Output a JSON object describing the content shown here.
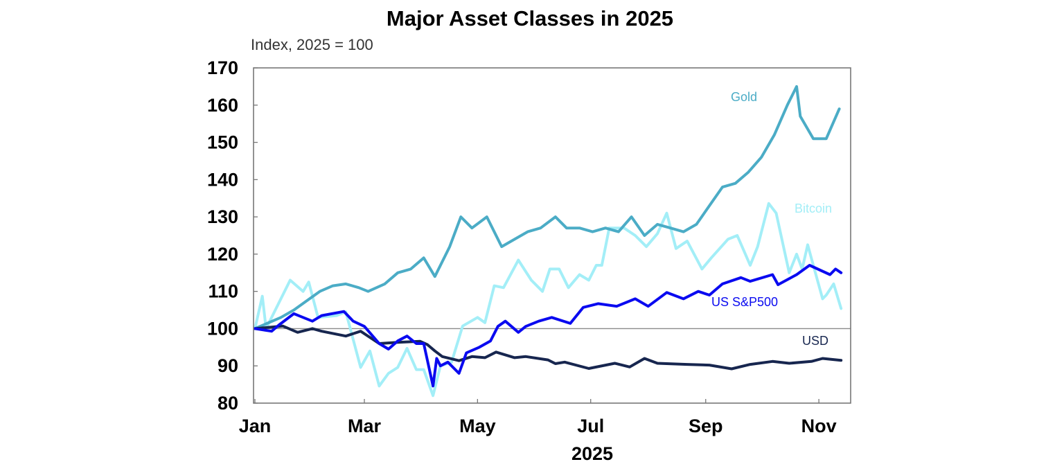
{
  "chart_data": {
    "type": "line",
    "title": "Major Asset Classes in 2025",
    "subtitle": "Index, 2025 = 100",
    "xlabel": "2025",
    "ylabel": "",
    "ylim": [
      80,
      170
    ],
    "yticks": [
      "170",
      "160",
      "150",
      "140",
      "130",
      "120",
      "110",
      "100",
      "90",
      "80"
    ],
    "xticks": [
      {
        "label": "Jan",
        "date": "2025-01-01"
      },
      {
        "label": "Mar",
        "date": "2025-03-01"
      },
      {
        "label": "May",
        "date": "2025-05-01"
      },
      {
        "label": "Jul",
        "date": "2025-07-01"
      },
      {
        "label": "Sep",
        "date": "2025-09-01"
      },
      {
        "label": "Nov",
        "date": "2025-11-01"
      }
    ],
    "reference_line": 100,
    "grid": false,
    "legend": "inline labels",
    "series": [
      {
        "name": "Gold",
        "color": "#4BACC6",
        "points": [
          [
            "2025-01-01",
            100
          ],
          [
            "2025-01-08",
            101.5
          ],
          [
            "2025-01-15",
            103
          ],
          [
            "2025-01-22",
            105
          ],
          [
            "2025-01-29",
            107.5
          ],
          [
            "2025-02-05",
            110
          ],
          [
            "2025-02-12",
            111.5
          ],
          [
            "2025-02-19",
            112
          ],
          [
            "2025-02-26",
            111
          ],
          [
            "2025-03-03",
            110
          ],
          [
            "2025-03-12",
            112
          ],
          [
            "2025-03-19",
            115
          ],
          [
            "2025-03-26",
            116
          ],
          [
            "2025-04-02",
            119
          ],
          [
            "2025-04-08",
            114
          ],
          [
            "2025-04-16",
            122
          ],
          [
            "2025-04-22",
            130
          ],
          [
            "2025-04-28",
            127
          ],
          [
            "2025-05-06",
            130
          ],
          [
            "2025-05-14",
            122
          ],
          [
            "2025-05-21",
            124
          ],
          [
            "2025-05-28",
            126
          ],
          [
            "2025-06-04",
            127
          ],
          [
            "2025-06-12",
            130
          ],
          [
            "2025-06-18",
            127
          ],
          [
            "2025-06-25",
            127
          ],
          [
            "2025-07-02",
            126
          ],
          [
            "2025-07-09",
            127
          ],
          [
            "2025-07-16",
            126
          ],
          [
            "2025-07-23",
            130
          ],
          [
            "2025-07-30",
            125
          ],
          [
            "2025-08-06",
            128
          ],
          [
            "2025-08-13",
            127
          ],
          [
            "2025-08-20",
            126
          ],
          [
            "2025-08-27",
            128
          ],
          [
            "2025-09-03",
            133
          ],
          [
            "2025-09-10",
            138
          ],
          [
            "2025-09-17",
            139
          ],
          [
            "2025-09-24",
            142
          ],
          [
            "2025-10-01",
            146
          ],
          [
            "2025-10-08",
            152
          ],
          [
            "2025-10-15",
            160
          ],
          [
            "2025-10-20",
            165
          ],
          [
            "2025-10-22",
            157
          ],
          [
            "2025-10-29",
            151
          ],
          [
            "2025-11-05",
            151
          ],
          [
            "2025-11-12",
            159
          ]
        ]
      },
      {
        "name": "Bitcoin",
        "color": "#A3EEF7",
        "points": [
          [
            "2025-01-01",
            100
          ],
          [
            "2025-01-05",
            108.7
          ],
          [
            "2025-01-07",
            100
          ],
          [
            "2025-01-20",
            113
          ],
          [
            "2025-01-27",
            110
          ],
          [
            "2025-01-30",
            112.5
          ],
          [
            "2025-02-04",
            103
          ],
          [
            "2025-02-14",
            103.5
          ],
          [
            "2025-02-19",
            104.5
          ],
          [
            "2025-02-27",
            89.6
          ],
          [
            "2025-03-04",
            94
          ],
          [
            "2025-03-09",
            84.6
          ],
          [
            "2025-03-14",
            88
          ],
          [
            "2025-03-19",
            89.6
          ],
          [
            "2025-03-24",
            94.7
          ],
          [
            "2025-03-29",
            89
          ],
          [
            "2025-04-02",
            89
          ],
          [
            "2025-04-07",
            82
          ],
          [
            "2025-04-11",
            90
          ],
          [
            "2025-04-17",
            91
          ],
          [
            "2025-04-23",
            100.7
          ],
          [
            "2025-05-01",
            103
          ],
          [
            "2025-05-05",
            101.6
          ],
          [
            "2025-05-10",
            111.5
          ],
          [
            "2025-05-15",
            111
          ],
          [
            "2025-05-23",
            118.4
          ],
          [
            "2025-05-30",
            113
          ],
          [
            "2025-06-05",
            110
          ],
          [
            "2025-06-09",
            116
          ],
          [
            "2025-06-14",
            116
          ],
          [
            "2025-06-19",
            111
          ],
          [
            "2025-06-25",
            114.5
          ],
          [
            "2025-06-30",
            113
          ],
          [
            "2025-07-04",
            117
          ],
          [
            "2025-07-07",
            117
          ],
          [
            "2025-07-11",
            127
          ],
          [
            "2025-07-19",
            127
          ],
          [
            "2025-07-25",
            125
          ],
          [
            "2025-07-31",
            122
          ],
          [
            "2025-08-06",
            125.5
          ],
          [
            "2025-08-11",
            131
          ],
          [
            "2025-08-16",
            121.5
          ],
          [
            "2025-08-22",
            123.5
          ],
          [
            "2025-08-30",
            116
          ],
          [
            "2025-09-04",
            119
          ],
          [
            "2025-09-13",
            124
          ],
          [
            "2025-09-18",
            125
          ],
          [
            "2025-09-25",
            117
          ],
          [
            "2025-09-29",
            122
          ],
          [
            "2025-10-05",
            133.6
          ],
          [
            "2025-10-09",
            131
          ],
          [
            "2025-10-16",
            115
          ],
          [
            "2025-10-20",
            120
          ],
          [
            "2025-10-23",
            116
          ],
          [
            "2025-10-26",
            122.5
          ],
          [
            "2025-10-29",
            117
          ],
          [
            "2025-11-03",
            108
          ],
          [
            "2025-11-05",
            109
          ],
          [
            "2025-11-09",
            112
          ],
          [
            "2025-11-13",
            105.4
          ]
        ]
      },
      {
        "name": "US S&P500",
        "color": "#0A0AF0",
        "points": [
          [
            "2025-01-01",
            100
          ],
          [
            "2025-01-10",
            99.3
          ],
          [
            "2025-01-14",
            101
          ],
          [
            "2025-01-22",
            104
          ],
          [
            "2025-01-27",
            103
          ],
          [
            "2025-02-01",
            102
          ],
          [
            "2025-02-06",
            103.5
          ],
          [
            "2025-02-18",
            104.6
          ],
          [
            "2025-02-23",
            102
          ],
          [
            "2025-03-01",
            100.6
          ],
          [
            "2025-03-09",
            96
          ],
          [
            "2025-03-14",
            94.5
          ],
          [
            "2025-03-19",
            96.7
          ],
          [
            "2025-03-24",
            98
          ],
          [
            "2025-03-29",
            96
          ],
          [
            "2025-04-02",
            96
          ],
          [
            "2025-04-07",
            84.6
          ],
          [
            "2025-04-09",
            92
          ],
          [
            "2025-04-11",
            90
          ],
          [
            "2025-04-15",
            91
          ],
          [
            "2025-04-21",
            88
          ],
          [
            "2025-04-25",
            93.5
          ],
          [
            "2025-05-02",
            95
          ],
          [
            "2025-05-08",
            96.7
          ],
          [
            "2025-05-12",
            100.6
          ],
          [
            "2025-05-16",
            102
          ],
          [
            "2025-05-23",
            99
          ],
          [
            "2025-05-27",
            100.6
          ],
          [
            "2025-06-03",
            102
          ],
          [
            "2025-06-10",
            103
          ],
          [
            "2025-06-20",
            101.4
          ],
          [
            "2025-06-27",
            105.7
          ],
          [
            "2025-07-05",
            106.7
          ],
          [
            "2025-07-15",
            106
          ],
          [
            "2025-07-25",
            108
          ],
          [
            "2025-08-01",
            106
          ],
          [
            "2025-08-11",
            109.7
          ],
          [
            "2025-08-20",
            108
          ],
          [
            "2025-08-28",
            110
          ],
          [
            "2025-09-03",
            109
          ],
          [
            "2025-09-10",
            112
          ],
          [
            "2025-09-20",
            113.7
          ],
          [
            "2025-09-25",
            112.7
          ],
          [
            "2025-10-07",
            114.5
          ],
          [
            "2025-10-10",
            111.8
          ],
          [
            "2025-10-20",
            114.5
          ],
          [
            "2025-10-27",
            117
          ],
          [
            "2025-11-07",
            114.5
          ],
          [
            "2025-11-10",
            116
          ],
          [
            "2025-11-13",
            115
          ]
        ]
      },
      {
        "name": "USD",
        "color": "#17264F",
        "points": [
          [
            "2025-01-01",
            100
          ],
          [
            "2025-01-16",
            100.7
          ],
          [
            "2025-01-24",
            99
          ],
          [
            "2025-02-01",
            100
          ],
          [
            "2025-02-06",
            99.3
          ],
          [
            "2025-02-19",
            98
          ],
          [
            "2025-02-27",
            99.3
          ],
          [
            "2025-03-09",
            96
          ],
          [
            "2025-03-19",
            96.3
          ],
          [
            "2025-03-31",
            96.6
          ],
          [
            "2025-04-04",
            95.7
          ],
          [
            "2025-04-08",
            94
          ],
          [
            "2025-04-12",
            92.5
          ],
          [
            "2025-04-21",
            91.4
          ],
          [
            "2025-04-28",
            92.5
          ],
          [
            "2025-05-05",
            92.2
          ],
          [
            "2025-05-11",
            93.7
          ],
          [
            "2025-05-21",
            92.2
          ],
          [
            "2025-05-27",
            92.5
          ],
          [
            "2025-06-08",
            91.6
          ],
          [
            "2025-06-12",
            90.6
          ],
          [
            "2025-06-17",
            91
          ],
          [
            "2025-06-30",
            89.3
          ],
          [
            "2025-07-14",
            90.7
          ],
          [
            "2025-07-22",
            89.7
          ],
          [
            "2025-07-30",
            92
          ],
          [
            "2025-08-06",
            90.7
          ],
          [
            "2025-08-22",
            90.4
          ],
          [
            "2025-09-03",
            90.2
          ],
          [
            "2025-09-15",
            89.2
          ],
          [
            "2025-09-25",
            90.4
          ],
          [
            "2025-10-07",
            91.2
          ],
          [
            "2025-10-16",
            90.7
          ],
          [
            "2025-10-28",
            91.2
          ],
          [
            "2025-11-03",
            92
          ],
          [
            "2025-11-13",
            91.5
          ]
        ]
      }
    ]
  }
}
